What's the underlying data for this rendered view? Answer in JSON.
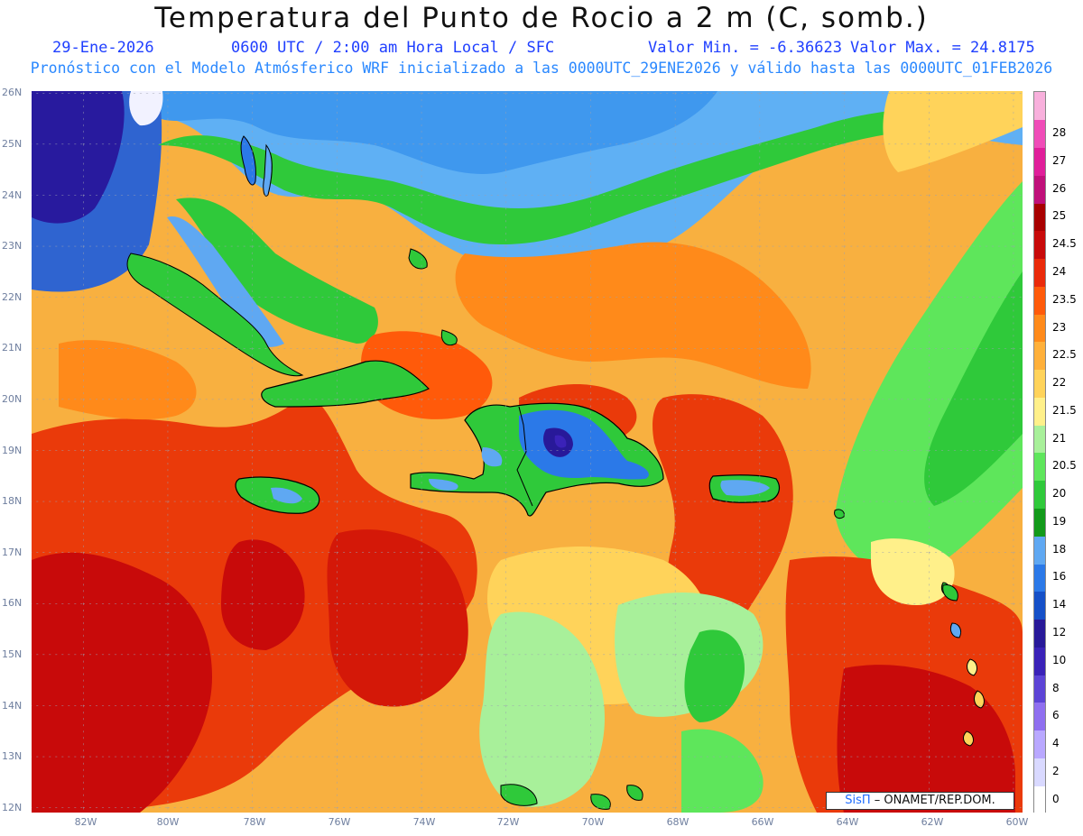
{
  "header": {
    "title": "Temperatura del Punto de Rocio a 2 m (C, somb.)",
    "date": "29-Ene-2026",
    "time": "0600 UTC / 2:00 am Hora Local / SFC",
    "min": "Valor Min. = -6.36623",
    "max": "Valor Max. = 24.8175",
    "subtitle": "Pronóstico con el Modelo Atmósferico WRF inicializado a las 0000UTC_29ENE2026 y válido hasta las  0000UTC_01FEB2026"
  },
  "lat_labels": [
    "26N",
    "25N",
    "24N",
    "23N",
    "22N",
    "21N",
    "20N",
    "19N",
    "18N",
    "17N",
    "16N",
    "15N",
    "14N",
    "13N",
    "12N"
  ],
  "lon_labels": [
    "82W",
    "80W",
    "78W",
    "76W",
    "74W",
    "72W",
    "70W",
    "68W",
    "66W",
    "64W",
    "62W",
    "60W"
  ],
  "colorbar": {
    "levels": [
      "0",
      "2",
      "4",
      "6",
      "8",
      "10",
      "12",
      "14",
      "16",
      "18",
      "19",
      "20",
      "20.5",
      "21",
      "21.5",
      "22",
      "22.5",
      "23",
      "23.5",
      "24",
      "24.5",
      "25",
      "26",
      "27",
      "28"
    ],
    "colors": [
      "#ffffff",
      "#d9d9ff",
      "#b9a8ff",
      "#8f6ff0",
      "#5c44d6",
      "#3a22b8",
      "#281999",
      "#1550c8",
      "#2b79e8",
      "#5fa8f2",
      "#129a1a",
      "#2fc93a",
      "#5ee65b",
      "#a8f09a",
      "#fff08a",
      "#ffd35a",
      "#ffb03a",
      "#ff8a1a",
      "#ff5a0a",
      "#ea2a0a",
      "#c80a0a",
      "#a80000",
      "#c0107a",
      "#e01e9a",
      "#f04cb8",
      "#f8b0dc"
    ]
  },
  "credit": {
    "brand": "SisΠ",
    "text": "– ONAMET/REP.DOM."
  },
  "colors": {
    "title_blue": "#1f3fff",
    "subtitle_blue": "#2a88ff",
    "ocean_warm": "#f8a83c",
    "hot": "#e0240a"
  }
}
